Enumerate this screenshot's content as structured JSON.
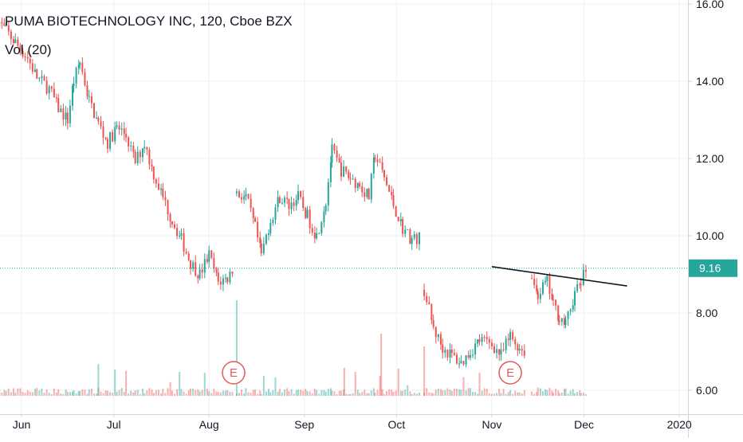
{
  "legend": {
    "title": "PUMA BIOTECHNOLOGY INC, 120, Cboe BZX",
    "volume_label": "Vol (20)"
  },
  "colors": {
    "up": "#26a69a",
    "down": "#ef5350",
    "grid": "#eef0f3",
    "price_line": "#26a69a",
    "price_tag_bg": "#26a69a",
    "trendline": "#131722",
    "earnings": "#e35a5a",
    "axis_border": "#d1d4dc"
  },
  "chart_data": {
    "type": "candlestick",
    "title": "PUMA BIOTECHNOLOGY INC, 120, Cboe BZX",
    "indicator": "Vol (20)",
    "y_axis": {
      "ticks": [
        "16.00",
        "14.00",
        "12.00",
        "10.00",
        "8.00",
        "6.00"
      ],
      "range": [
        5.8,
        16.1
      ]
    },
    "x_axis": {
      "ticks": [
        "Jun",
        "Jul",
        "Aug",
        "Sep",
        "Oct",
        "Nov",
        "Dec",
        "2020"
      ]
    },
    "current_price": "9.16",
    "earnings_markers": [
      {
        "label": "E",
        "month": "Aug"
      },
      {
        "label": "E",
        "month": "Nov"
      }
    ],
    "trendline": {
      "from": [
        "2019-11-01",
        9.2
      ],
      "to": [
        "2019-12-15",
        8.7
      ]
    },
    "price_path": [
      [
        "2019-05-24",
        15.6
      ],
      [
        "2019-05-27",
        15.3
      ],
      [
        "2019-05-30",
        15.0
      ],
      [
        "2019-06-03",
        14.6
      ],
      [
        "2019-06-06",
        14.1
      ],
      [
        "2019-06-10",
        13.8
      ],
      [
        "2019-06-13",
        13.3
      ],
      [
        "2019-06-16",
        13.0
      ],
      [
        "2019-06-18",
        14.0
      ],
      [
        "2019-06-20",
        14.5
      ],
      [
        "2019-06-23",
        13.5
      ],
      [
        "2019-06-26",
        12.9
      ],
      [
        "2019-06-29",
        12.4
      ],
      [
        "2019-07-02",
        12.8
      ],
      [
        "2019-07-05",
        12.6
      ],
      [
        "2019-07-08",
        11.9
      ],
      [
        "2019-07-11",
        12.4
      ],
      [
        "2019-07-14",
        11.6
      ],
      [
        "2019-07-17",
        11.0
      ],
      [
        "2019-07-20",
        10.4
      ],
      [
        "2019-07-23",
        9.9
      ],
      [
        "2019-07-26",
        9.3
      ],
      [
        "2019-07-29",
        9.0
      ],
      [
        "2019-08-01",
        9.5
      ],
      [
        "2019-08-04",
        8.8
      ],
      [
        "2019-08-07",
        8.9
      ],
      [
        "2019-08-09",
        9.2
      ],
      [
        "2019-08-10",
        11.1
      ],
      [
        "2019-08-13",
        11.0
      ],
      [
        "2019-08-16",
        10.2
      ],
      [
        "2019-08-18",
        9.5
      ],
      [
        "2019-08-21",
        10.4
      ],
      [
        "2019-08-24",
        11.0
      ],
      [
        "2019-08-27",
        10.8
      ],
      [
        "2019-08-30",
        11.0
      ],
      [
        "2019-09-02",
        10.5
      ],
      [
        "2019-09-05",
        10.0
      ],
      [
        "2019-09-08",
        10.9
      ],
      [
        "2019-09-10",
        12.2
      ],
      [
        "2019-09-13",
        11.7
      ],
      [
        "2019-09-16",
        11.5
      ],
      [
        "2019-09-19",
        11.3
      ],
      [
        "2019-09-22",
        11.0
      ],
      [
        "2019-09-24",
        12.1
      ],
      [
        "2019-09-27",
        11.5
      ],
      [
        "2019-09-30",
        10.8
      ],
      [
        "2019-10-03",
        10.2
      ],
      [
        "2019-10-06",
        9.9
      ],
      [
        "2019-10-09",
        9.95
      ],
      [
        "2019-10-10",
        8.6
      ],
      [
        "2019-10-13",
        7.6
      ],
      [
        "2019-10-16",
        7.1
      ],
      [
        "2019-10-19",
        6.9
      ],
      [
        "2019-10-22",
        6.7
      ],
      [
        "2019-10-25",
        7.0
      ],
      [
        "2019-10-28",
        7.3
      ],
      [
        "2019-11-01",
        7.2
      ],
      [
        "2019-11-04",
        6.9
      ],
      [
        "2019-11-07",
        7.4
      ],
      [
        "2019-11-10",
        7.1
      ],
      [
        "2019-11-12",
        7.0
      ],
      [
        "2019-11-14",
        8.9
      ],
      [
        "2019-11-16",
        8.5
      ],
      [
        "2019-11-19",
        8.8
      ],
      [
        "2019-11-21",
        8.2
      ],
      [
        "2019-11-23",
        7.9
      ],
      [
        "2019-11-25",
        7.7
      ],
      [
        "2019-11-28",
        8.5
      ],
      [
        "2019-11-30",
        8.8
      ],
      [
        "2019-12-02",
        9.2
      ]
    ]
  }
}
